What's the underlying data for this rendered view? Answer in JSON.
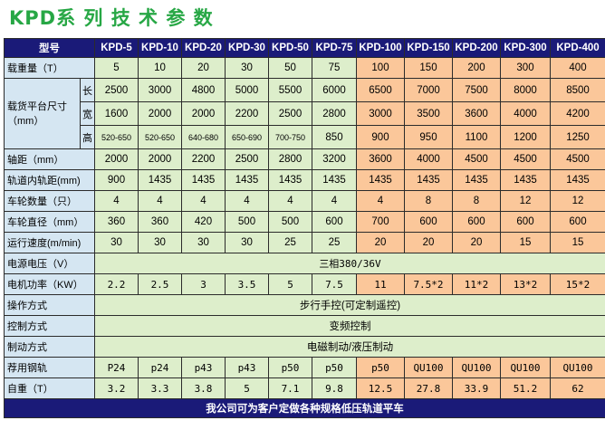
{
  "title": "KPD系 列 技 术 参 数",
  "header": {
    "label": "型号",
    "models": [
      "KPD-5",
      "KPD-10",
      "KPD-20",
      "KPD-30",
      "KPD-50",
      "KPD-75",
      "KPD-100",
      "KPD-150",
      "KPD-200",
      "KPD-300",
      "KPD-400"
    ]
  },
  "rows": {
    "load": {
      "label": "载重量（T）",
      "values": [
        "5",
        "10",
        "20",
        "30",
        "50",
        "75",
        "100",
        "150",
        "200",
        "300",
        "400"
      ]
    },
    "platform": {
      "label": "载货平台尺寸（mm）",
      "length": {
        "label": "长",
        "values": [
          "2500",
          "3000",
          "4800",
          "5000",
          "5500",
          "6000",
          "6500",
          "7000",
          "7500",
          "8000",
          "8500"
        ]
      },
      "width": {
        "label": "宽",
        "values": [
          "1600",
          "2000",
          "2000",
          "2200",
          "2500",
          "2800",
          "3000",
          "3500",
          "3600",
          "4000",
          "4200"
        ]
      },
      "height": {
        "label": "高",
        "values": [
          "520-650",
          "520-650",
          "640-680",
          "650-690",
          "700-750",
          "850",
          "900",
          "950",
          "1100",
          "1200",
          "1250"
        ]
      }
    },
    "axle": {
      "label": "轴距（mm）",
      "values": [
        "2000",
        "2000",
        "2200",
        "2500",
        "2800",
        "3200",
        "3600",
        "4000",
        "4500",
        "4500",
        "4500"
      ]
    },
    "gauge": {
      "label": "轨道内轨距(mm)",
      "values": [
        "900",
        "1435",
        "1435",
        "1435",
        "1435",
        "1435",
        "1435",
        "1435",
        "1435",
        "1435",
        "1435"
      ]
    },
    "wheel_count": {
      "label": "车轮数量（只）",
      "values": [
        "4",
        "4",
        "4",
        "4",
        "4",
        "4",
        "4",
        "8",
        "8",
        "12",
        "12"
      ]
    },
    "wheel_dia": {
      "label": "车轮直径（mm）",
      "values": [
        "360",
        "360",
        "420",
        "500",
        "500",
        "600",
        "700",
        "600",
        "600",
        "600",
        "600"
      ]
    },
    "speed": {
      "label": "运行速度(m/min)",
      "values": [
        "30",
        "30",
        "30",
        "30",
        "25",
        "25",
        "20",
        "20",
        "20",
        "15",
        "15"
      ]
    },
    "voltage": {
      "label": "电源电压（V）",
      "value": "三相380/36V"
    },
    "power": {
      "label": "电机功率（KW）",
      "values": [
        "2.2",
        "2.5",
        "3",
        "3.5",
        "5",
        "7.5",
        "11",
        "7.5*2",
        "11*2",
        "13*2",
        "15*2"
      ]
    },
    "operation": {
      "label": "操作方式",
      "value": "步行手控(可定制遥控)"
    },
    "control": {
      "label": "控制方式",
      "value": "变频控制"
    },
    "braking": {
      "label": "制动方式",
      "value": "电磁制动/液压制动"
    },
    "rail": {
      "label": "荐用钢轨",
      "values": [
        "P24",
        "p24",
        "p43",
        "p43",
        "p50",
        "p50",
        "p50",
        "QU100",
        "QU100",
        "QU100",
        "QU100"
      ]
    },
    "weight": {
      "label": "自重（T）",
      "values": [
        "3.2",
        "3.3",
        "3.8",
        "5",
        "7.1",
        "9.8",
        "12.5",
        "27.8",
        "33.9",
        "51.2",
        "62"
      ]
    }
  },
  "footer": "我公司可为客户定做各种规格低压轨道平车",
  "colors": {
    "title": "#27a745",
    "header_bg": "#1a1a78",
    "label_bg": "#d5e6f2",
    "green_cell": "#ddeecb",
    "orange_cell": "#fbc79a"
  }
}
